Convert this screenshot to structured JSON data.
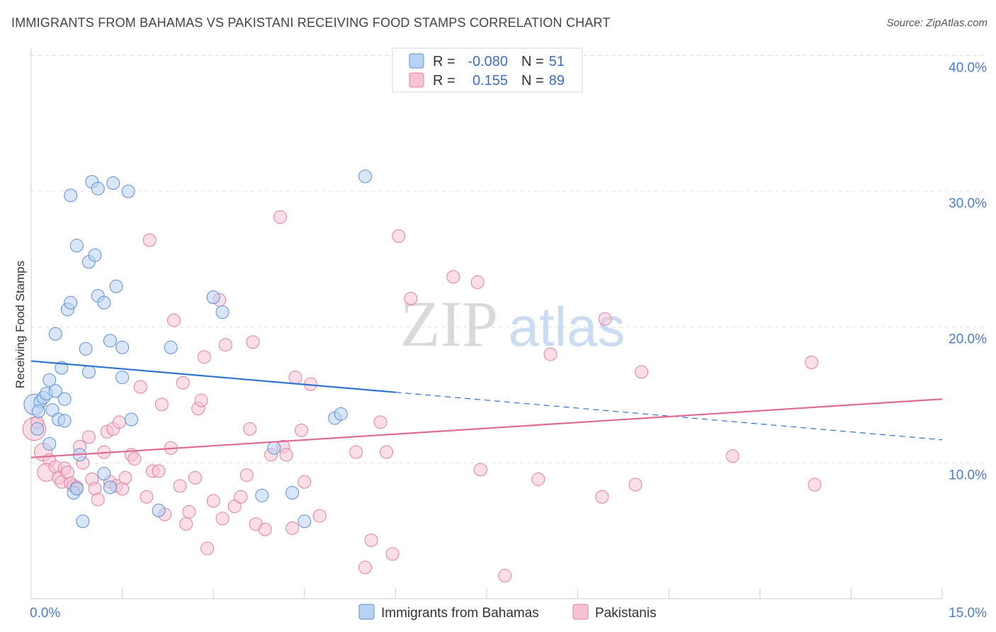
{
  "title": "IMMIGRANTS FROM BAHAMAS VS PAKISTANI RECEIVING FOOD STAMPS CORRELATION CHART",
  "source": "Source: ZipAtlas.com",
  "watermark": {
    "zip": "ZIP",
    "atlas": "atlas"
  },
  "colors": {
    "blue_fill": "#b8d2f3",
    "blue_stroke": "#5b8fd6",
    "blue_line": "#2f73d0",
    "pink_fill": "#f7c3d4",
    "pink_stroke": "#e27fa1",
    "pink_line": "#e06b95",
    "tick_color": "#4a7cc9",
    "grid": "#e0e0e0"
  },
  "legend": {
    "rows": [
      {
        "r_label": "R =",
        "r_value": "-0.080",
        "n_label": "N =",
        "n_value": "51",
        "series": "blue"
      },
      {
        "r_label": "R =",
        "r_value": "0.155",
        "n_label": "N =",
        "n_value": "89",
        "series": "pink"
      }
    ]
  },
  "bottom_legend": [
    {
      "label": "Immigrants from Bahamas",
      "series": "blue"
    },
    {
      "label": "Pakistanis",
      "series": "pink"
    }
  ],
  "chart_data": {
    "type": "scatter",
    "title": "IMMIGRANTS FROM BAHAMAS VS PAKISTANI RECEIVING FOOD STAMPS CORRELATION CHART",
    "xlabel": "",
    "ylabel": "Receiving Food Stamps",
    "xlim": [
      0,
      15
    ],
    "ylim": [
      0,
      42
    ],
    "x_tick_labels": [
      {
        "value": 0,
        "label": "0.0%"
      },
      {
        "value": 15,
        "label": "15.0%"
      }
    ],
    "y_tick_labels": [
      {
        "value": 10,
        "label": "10.0%"
      },
      {
        "value": 20,
        "label": "20.0%"
      },
      {
        "value": 30,
        "label": "30.0%"
      },
      {
        "value": 40,
        "label": "40.0%"
      }
    ],
    "grid": true,
    "legend_position": "top-center",
    "series": [
      {
        "name": "Immigrants from Bahamas",
        "color": "#5b8fd6",
        "trend": {
          "x": [
            0,
            6
          ],
          "y": [
            17.5,
            15.2
          ],
          "dashed_to": [
            15,
            11.7
          ]
        },
        "points": [
          [
            0.05,
            14.3,
            1.6
          ],
          [
            0.1,
            12.5,
            1.0
          ],
          [
            0.15,
            14.5,
            1.0
          ],
          [
            0.12,
            13.8,
            1.0
          ],
          [
            0.2,
            14.8,
            1.0
          ],
          [
            0.25,
            15.1,
            1.0
          ],
          [
            0.3,
            16.1,
            1.0
          ],
          [
            0.35,
            13.9,
            1.0
          ],
          [
            0.4,
            15.3,
            1.0
          ],
          [
            0.45,
            13.2,
            1.0
          ],
          [
            0.5,
            17.0,
            1.0
          ],
          [
            0.55,
            14.7,
            1.0
          ],
          [
            0.3,
            11.4,
            1.0
          ],
          [
            0.4,
            19.5,
            1.0
          ],
          [
            0.6,
            21.3,
            1.0
          ],
          [
            0.65,
            21.8,
            1.0
          ],
          [
            0.7,
            7.8,
            1.0
          ],
          [
            0.75,
            8.1,
            1.0
          ],
          [
            0.8,
            10.6,
            1.0
          ],
          [
            0.85,
            5.7,
            1.0
          ],
          [
            0.95,
            24.8,
            1.0
          ],
          [
            0.9,
            18.4,
            1.0
          ],
          [
            0.95,
            16.7,
            1.0
          ],
          [
            1.05,
            25.3,
            1.0
          ],
          [
            0.75,
            26.0,
            1.0
          ],
          [
            0.65,
            29.7,
            1.0
          ],
          [
            1.0,
            30.7,
            1.0
          ],
          [
            1.1,
            30.2,
            1.0
          ],
          [
            1.35,
            30.6,
            1.0
          ],
          [
            1.6,
            30.0,
            1.0
          ],
          [
            1.1,
            22.3,
            1.0
          ],
          [
            1.2,
            21.8,
            1.0
          ],
          [
            1.4,
            23.0,
            1.0
          ],
          [
            1.3,
            19.0,
            1.0
          ],
          [
            1.5,
            18.5,
            1.0
          ],
          [
            1.5,
            16.3,
            1.0
          ],
          [
            1.65,
            13.2,
            1.0
          ],
          [
            1.2,
            9.2,
            1.0
          ],
          [
            1.3,
            8.2,
            1.0
          ],
          [
            2.1,
            6.5,
            1.0
          ],
          [
            2.3,
            18.5,
            1.0
          ],
          [
            3.0,
            22.2,
            1.0
          ],
          [
            3.15,
            21.1,
            1.0
          ],
          [
            3.8,
            7.6,
            1.0
          ],
          [
            4.0,
            11.1,
            1.0
          ],
          [
            4.3,
            7.8,
            1.0
          ],
          [
            4.5,
            5.7,
            1.0
          ],
          [
            5.0,
            13.3,
            1.0
          ],
          [
            5.1,
            13.6,
            1.0
          ],
          [
            5.5,
            31.1,
            1.0
          ],
          [
            0.55,
            13.1,
            1.0
          ]
        ]
      },
      {
        "name": "Pakistanis",
        "color": "#e27fa1",
        "trend": {
          "x": [
            0,
            15
          ],
          "y": [
            10.4,
            14.7
          ]
        },
        "points": [
          [
            0.05,
            12.5,
            1.8
          ],
          [
            0.2,
            10.8,
            1.4
          ],
          [
            0.1,
            13.0,
            1.0
          ],
          [
            0.3,
            10.2,
            1.0
          ],
          [
            0.25,
            9.3,
            1.4
          ],
          [
            0.4,
            9.7,
            1.0
          ],
          [
            0.45,
            8.9,
            1.0
          ],
          [
            0.5,
            8.6,
            1.0
          ],
          [
            0.55,
            9.6,
            1.0
          ],
          [
            0.6,
            9.3,
            1.0
          ],
          [
            0.65,
            8.5,
            1.0
          ],
          [
            0.7,
            8.3,
            1.0
          ],
          [
            0.75,
            8.2,
            1.0
          ],
          [
            0.8,
            11.2,
            1.0
          ],
          [
            0.85,
            10.0,
            1.0
          ],
          [
            0.95,
            11.9,
            1.0
          ],
          [
            1.0,
            8.8,
            1.0
          ],
          [
            1.05,
            8.1,
            1.0
          ],
          [
            1.1,
            7.3,
            1.0
          ],
          [
            1.2,
            10.8,
            1.0
          ],
          [
            1.25,
            12.3,
            1.0
          ],
          [
            1.3,
            8.6,
            1.0
          ],
          [
            1.35,
            12.5,
            1.0
          ],
          [
            1.4,
            8.3,
            1.0
          ],
          [
            1.45,
            13.0,
            1.0
          ],
          [
            1.5,
            8.1,
            1.0
          ],
          [
            1.55,
            8.9,
            1.0
          ],
          [
            1.65,
            10.6,
            1.0
          ],
          [
            1.7,
            10.3,
            1.0
          ],
          [
            1.8,
            15.6,
            1.0
          ],
          [
            1.9,
            7.5,
            1.0
          ],
          [
            1.95,
            26.4,
            1.0
          ],
          [
            2.0,
            9.4,
            1.0
          ],
          [
            2.1,
            9.4,
            1.0
          ],
          [
            2.15,
            14.3,
            1.0
          ],
          [
            2.2,
            6.2,
            1.0
          ],
          [
            2.3,
            11.1,
            1.0
          ],
          [
            2.35,
            20.5,
            1.0
          ],
          [
            2.45,
            8.3,
            1.0
          ],
          [
            2.5,
            15.9,
            1.0
          ],
          [
            2.55,
            5.5,
            1.0
          ],
          [
            2.6,
            6.4,
            1.0
          ],
          [
            2.7,
            8.9,
            1.0
          ],
          [
            2.75,
            14.0,
            1.0
          ],
          [
            2.8,
            14.6,
            1.0
          ],
          [
            2.85,
            17.8,
            1.0
          ],
          [
            2.9,
            3.7,
            1.0
          ],
          [
            3.0,
            7.2,
            1.0
          ],
          [
            3.1,
            22.0,
            1.0
          ],
          [
            3.15,
            5.9,
            1.0
          ],
          [
            3.2,
            18.7,
            1.0
          ],
          [
            3.35,
            6.8,
            1.0
          ],
          [
            3.45,
            7.5,
            1.0
          ],
          [
            3.55,
            9.1,
            1.0
          ],
          [
            3.6,
            12.5,
            1.0
          ],
          [
            3.65,
            18.9,
            1.0
          ],
          [
            3.7,
            5.5,
            1.0
          ],
          [
            3.85,
            5.1,
            1.0
          ],
          [
            3.95,
            10.6,
            1.0
          ],
          [
            4.1,
            28.1,
            1.0
          ],
          [
            4.15,
            11.2,
            1.0
          ],
          [
            4.2,
            10.6,
            1.0
          ],
          [
            4.3,
            5.2,
            1.0
          ],
          [
            4.35,
            16.3,
            1.0
          ],
          [
            4.45,
            12.4,
            1.0
          ],
          [
            4.5,
            8.6,
            1.0
          ],
          [
            4.6,
            15.8,
            1.0
          ],
          [
            4.75,
            6.1,
            1.0
          ],
          [
            5.35,
            10.8,
            1.0
          ],
          [
            5.5,
            2.3,
            1.0
          ],
          [
            5.6,
            4.3,
            1.0
          ],
          [
            5.75,
            13.0,
            1.0
          ],
          [
            5.85,
            10.8,
            1.0
          ],
          [
            5.95,
            3.3,
            1.0
          ],
          [
            6.05,
            26.7,
            1.0
          ],
          [
            6.25,
            22.1,
            1.0
          ],
          [
            6.95,
            23.7,
            1.0
          ],
          [
            7.35,
            23.3,
            1.0
          ],
          [
            7.4,
            9.5,
            1.0
          ],
          [
            7.8,
            1.7,
            1.0
          ],
          [
            8.35,
            8.8,
            1.0
          ],
          [
            8.55,
            18.0,
            1.0
          ],
          [
            9.4,
            7.5,
            1.0
          ],
          [
            9.45,
            20.6,
            1.0
          ],
          [
            9.95,
            8.4,
            1.0
          ],
          [
            10.05,
            16.7,
            1.0
          ],
          [
            11.55,
            10.5,
            1.0
          ],
          [
            12.85,
            17.4,
            1.0
          ],
          [
            12.9,
            8.4,
            1.0
          ]
        ]
      }
    ]
  }
}
